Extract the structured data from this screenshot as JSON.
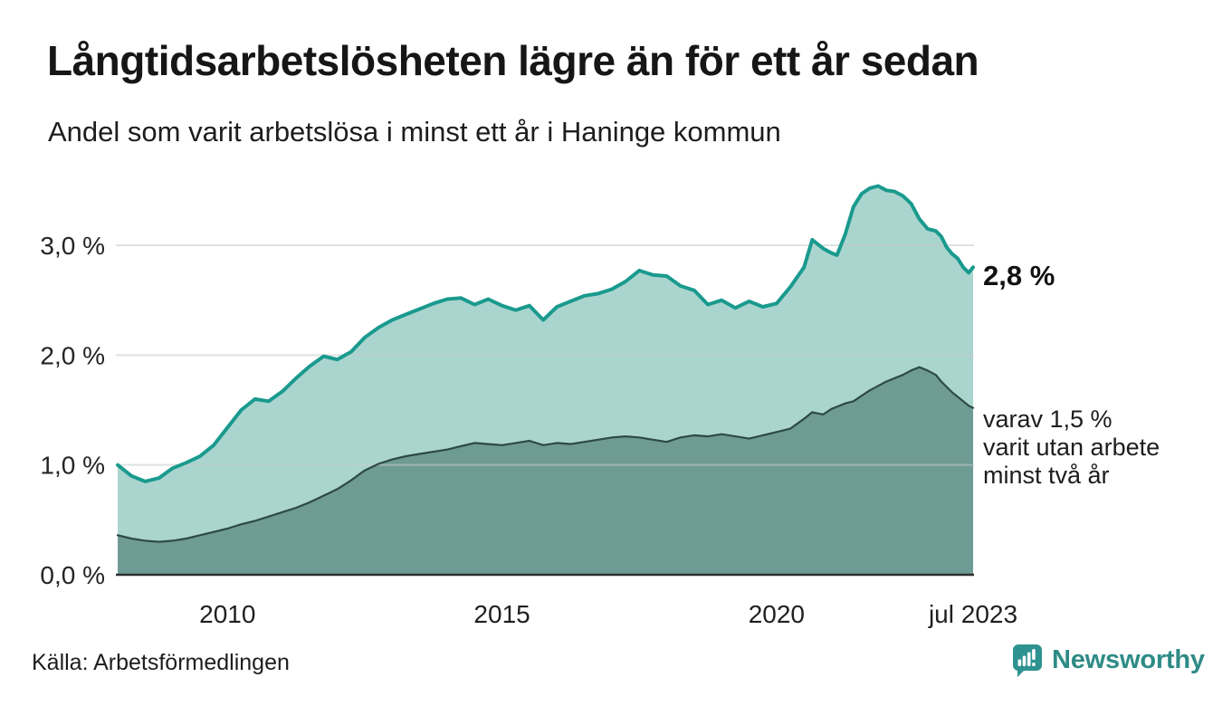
{
  "header": {
    "title": "Långtidsarbetslösheten lägre än för ett år sedan",
    "subtitle": "Andel som varit arbetslösa i minst ett år i Haninge kommun"
  },
  "chart_data": {
    "type": "area",
    "title": "Långtidsarbetslösheten lägre än för ett år sedan",
    "xlabel": "",
    "ylabel": "",
    "xlim": [
      2008.0,
      2023.58
    ],
    "ylim": [
      0,
      3.7
    ],
    "grid": true,
    "legend_position": "annotations-right",
    "x": [
      2008.0,
      2008.25,
      2008.5,
      2008.75,
      2009.0,
      2009.25,
      2009.5,
      2009.75,
      2010.0,
      2010.25,
      2010.5,
      2010.75,
      2011.0,
      2011.25,
      2011.5,
      2011.75,
      2012.0,
      2012.25,
      2012.5,
      2012.75,
      2013.0,
      2013.25,
      2013.5,
      2013.75,
      2014.0,
      2014.25,
      2014.5,
      2014.75,
      2015.0,
      2015.25,
      2015.5,
      2015.75,
      2016.0,
      2016.25,
      2016.5,
      2016.75,
      2017.0,
      2017.25,
      2017.5,
      2017.75,
      2018.0,
      2018.25,
      2018.5,
      2018.75,
      2019.0,
      2019.25,
      2019.5,
      2019.75,
      2020.0,
      2020.25,
      2020.5,
      2020.65,
      2020.85,
      2021.0,
      2021.1,
      2021.25,
      2021.4,
      2021.55,
      2021.7,
      2021.85,
      2022.0,
      2022.15,
      2022.3,
      2022.45,
      2022.6,
      2022.75,
      2022.9,
      2023.0,
      2023.1,
      2023.2,
      2023.3,
      2023.4,
      2023.5,
      2023.58
    ],
    "series": [
      {
        "name": "Andel som varit arbetslösa i minst ett år",
        "color": "#1a9a8e",
        "fill": "#aad5cf",
        "end_label": "2,8 %",
        "values": [
          1.0,
          0.9,
          0.85,
          0.88,
          0.97,
          1.02,
          1.08,
          1.18,
          1.34,
          1.5,
          1.6,
          1.58,
          1.67,
          1.79,
          1.9,
          1.99,
          1.96,
          2.03,
          2.16,
          2.25,
          2.32,
          2.37,
          2.42,
          2.47,
          2.51,
          2.52,
          2.46,
          2.51,
          2.45,
          2.41,
          2.45,
          2.32,
          2.44,
          2.49,
          2.54,
          2.56,
          2.6,
          2.67,
          2.77,
          2.73,
          2.72,
          2.63,
          2.59,
          2.46,
          2.5,
          2.43,
          2.49,
          2.44,
          2.47,
          2.62,
          2.8,
          3.05,
          2.97,
          2.93,
          2.91,
          3.1,
          3.35,
          3.47,
          3.52,
          3.54,
          3.5,
          3.49,
          3.45,
          3.38,
          3.24,
          3.15,
          3.13,
          3.08,
          2.98,
          2.92,
          2.88,
          2.8,
          2.75,
          2.8
        ]
      },
      {
        "name": "varav arbetslösa minst två år",
        "color": "#2e4a45",
        "fill": "#6f9b95",
        "end_label": "varav 1,5 % varit utan arbete minst två år",
        "values": [
          0.36,
          0.33,
          0.31,
          0.3,
          0.31,
          0.33,
          0.36,
          0.39,
          0.42,
          0.46,
          0.49,
          0.53,
          0.57,
          0.61,
          0.66,
          0.72,
          0.78,
          0.86,
          0.95,
          1.01,
          1.05,
          1.08,
          1.1,
          1.12,
          1.14,
          1.17,
          1.2,
          1.19,
          1.18,
          1.2,
          1.22,
          1.18,
          1.2,
          1.19,
          1.21,
          1.23,
          1.25,
          1.26,
          1.25,
          1.23,
          1.21,
          1.25,
          1.27,
          1.26,
          1.28,
          1.26,
          1.24,
          1.27,
          1.3,
          1.33,
          1.42,
          1.48,
          1.46,
          1.51,
          1.53,
          1.56,
          1.58,
          1.63,
          1.68,
          1.72,
          1.76,
          1.79,
          1.82,
          1.86,
          1.89,
          1.86,
          1.82,
          1.76,
          1.71,
          1.66,
          1.62,
          1.58,
          1.54,
          1.52
        ]
      }
    ],
    "yticks": [
      {
        "value": 0,
        "label": "0,0 %"
      },
      {
        "value": 1,
        "label": "1,0 %"
      },
      {
        "value": 2,
        "label": "2,0 %"
      },
      {
        "value": 3,
        "label": "3,0 %"
      }
    ],
    "xticks": [
      {
        "value": 2010,
        "label": "2010"
      },
      {
        "value": 2015,
        "label": "2015"
      },
      {
        "value": 2020,
        "label": "2020"
      },
      {
        "value": 2023.58,
        "label": "jul 2023"
      }
    ],
    "annotations": {
      "latest": "2,8 %",
      "secondary_lines": [
        "varav 1,5 %",
        "varit utan arbete",
        "minst två år"
      ]
    }
  },
  "footer": {
    "source": "Källa: Arbetsförmedlingen",
    "brand": "Newsworthy"
  },
  "colors": {
    "accent": "#1a9a8e",
    "fill_light": "#aad5cf",
    "fill_dark": "#6f9b95",
    "line_dark": "#2e4a45",
    "grid": "#c3cbcc",
    "axis": "#2e2e2e",
    "brand": "#2e8b86",
    "text": "#1d1d1d"
  }
}
